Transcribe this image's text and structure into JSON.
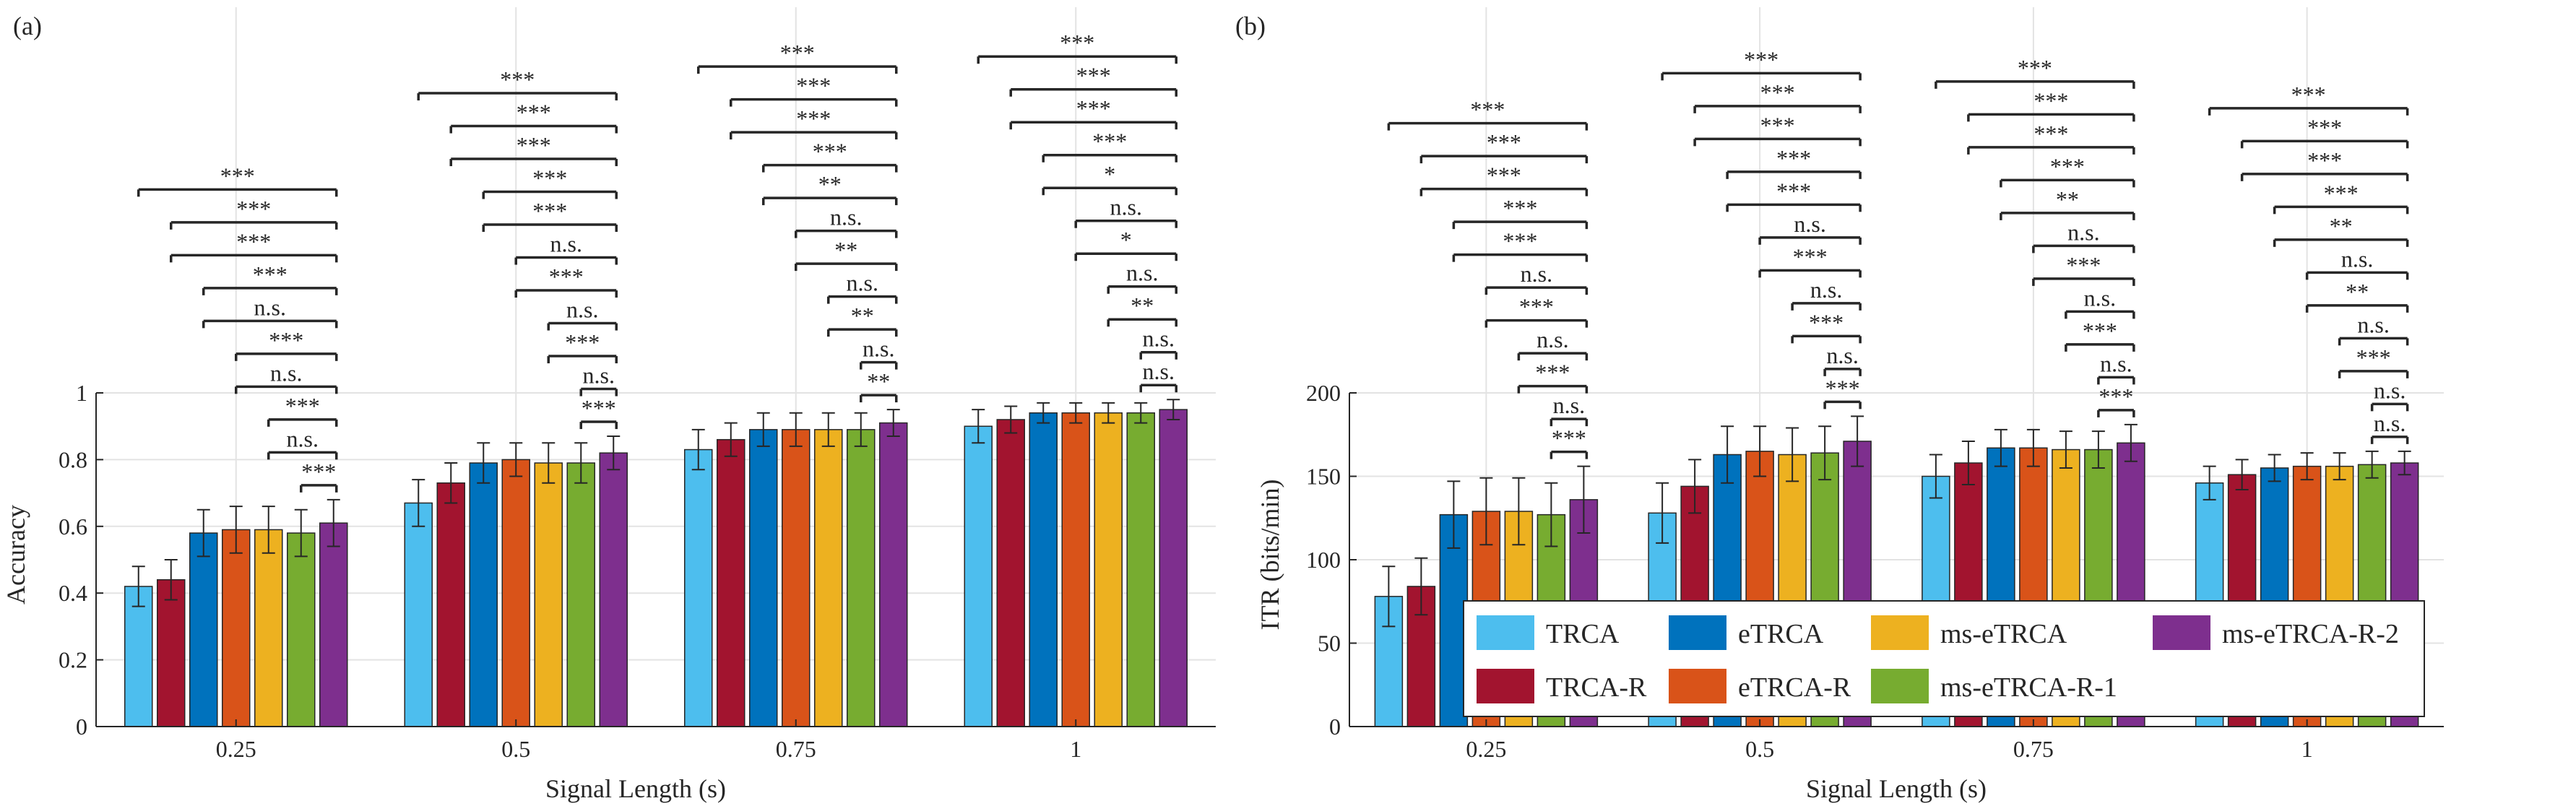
{
  "colors": {
    "TRCA": "#4DBEEE",
    "TRCA-R": "#A2142F",
    "eTRCA": "#0072BD",
    "eTRCA-R": "#D95319",
    "ms-eTRCA": "#EDB120",
    "ms-eTRCA-R-1": "#77AC30",
    "ms-eTRCA-R-2": "#7E2F8E"
  },
  "legend": {
    "placement": "bottom-right of panel (b)",
    "entries": [
      "TRCA",
      "TRCA-R",
      "eTRCA",
      "eTRCA-R",
      "ms-eTRCA",
      "ms-eTRCA-R-1",
      "ms-eTRCA-R-2"
    ]
  },
  "chart_data": [
    {
      "type": "bar",
      "panel": "(a)",
      "xlabel": "Signal Length (s)",
      "ylabel": "Accuracy",
      "ylim": [
        0,
        1
      ],
      "yticks": [
        "0",
        "0.2",
        "0.4",
        "0.6",
        "0.8",
        "1"
      ],
      "ytick_values": [
        0,
        0.2,
        0.4,
        0.6,
        0.8,
        1
      ],
      "categories": [
        "0.25",
        "0.5",
        "0.75",
        "1"
      ],
      "grid": true,
      "series": [
        {
          "name": "TRCA",
          "values": [
            0.42,
            0.67,
            0.83,
            0.9
          ],
          "errors": [
            0.06,
            0.07,
            0.06,
            0.05
          ]
        },
        {
          "name": "TRCA-R",
          "values": [
            0.44,
            0.73,
            0.86,
            0.92
          ],
          "errors": [
            0.06,
            0.06,
            0.05,
            0.04
          ]
        },
        {
          "name": "eTRCA",
          "values": [
            0.58,
            0.79,
            0.89,
            0.94
          ],
          "errors": [
            0.07,
            0.06,
            0.05,
            0.03
          ]
        },
        {
          "name": "eTRCA-R",
          "values": [
            0.59,
            0.8,
            0.89,
            0.94
          ],
          "errors": [
            0.07,
            0.05,
            0.05,
            0.03
          ]
        },
        {
          "name": "ms-eTRCA",
          "values": [
            0.59,
            0.79,
            0.89,
            0.94
          ],
          "errors": [
            0.07,
            0.06,
            0.05,
            0.03
          ]
        },
        {
          "name": "ms-eTRCA-R-1",
          "values": [
            0.58,
            0.79,
            0.89,
            0.94
          ],
          "errors": [
            0.07,
            0.06,
            0.05,
            0.03
          ]
        },
        {
          "name": "ms-eTRCA-R-2",
          "values": [
            0.61,
            0.82,
            0.91,
            0.95
          ],
          "errors": [
            0.07,
            0.05,
            0.04,
            0.03
          ]
        }
      ],
      "significance": [
        [
          "***",
          "***",
          "***",
          "***",
          "n.s.",
          "***",
          "n.s.",
          "***",
          "n.s.",
          "***"
        ],
        [
          "***",
          "***",
          "***",
          "***",
          "***",
          "n.s.",
          "***",
          "n.s.",
          "***",
          "n.s.",
          "***"
        ],
        [
          "***",
          "***",
          "***",
          "***",
          "**",
          "n.s.",
          "**",
          "n.s.",
          "**",
          "n.s.",
          "**"
        ],
        [
          "***",
          "***",
          "***",
          "***",
          "*",
          "n.s.",
          "*",
          "n.s.",
          "**",
          "n.s.",
          "n.s."
        ]
      ]
    },
    {
      "type": "bar",
      "panel": "(b)",
      "xlabel": "Signal Length (s)",
      "ylabel": "ITR (bits/min)",
      "ylim": [
        0,
        200
      ],
      "yticks": [
        "0",
        "50",
        "100",
        "150",
        "200"
      ],
      "ytick_values": [
        0,
        50,
        100,
        150,
        200
      ],
      "categories": [
        "0.25",
        "0.5",
        "0.75",
        "1"
      ],
      "grid": true,
      "series": [
        {
          "name": "TRCA",
          "values": [
            78,
            128,
            150,
            146
          ],
          "errors": [
            18,
            18,
            13,
            10
          ]
        },
        {
          "name": "TRCA-R",
          "values": [
            84,
            144,
            158,
            151
          ],
          "errors": [
            17,
            16,
            13,
            9
          ]
        },
        {
          "name": "eTRCA",
          "values": [
            127,
            163,
            167,
            155
          ],
          "errors": [
            20,
            17,
            11,
            8
          ]
        },
        {
          "name": "eTRCA-R",
          "values": [
            129,
            165,
            167,
            156
          ],
          "errors": [
            20,
            15,
            11,
            8
          ]
        },
        {
          "name": "ms-eTRCA",
          "values": [
            129,
            163,
            166,
            156
          ],
          "errors": [
            20,
            16,
            11,
            8
          ]
        },
        {
          "name": "ms-eTRCA-R-1",
          "values": [
            127,
            164,
            166,
            157
          ],
          "errors": [
            19,
            16,
            11,
            8
          ]
        },
        {
          "name": "ms-eTRCA-R-2",
          "values": [
            136,
            171,
            170,
            158
          ],
          "errors": [
            20,
            15,
            11,
            7
          ]
        }
      ],
      "significance": [
        [
          "***",
          "***",
          "***",
          "***",
          "***",
          "n.s.",
          "***",
          "n.s.",
          "***",
          "n.s.",
          "***"
        ],
        [
          "***",
          "***",
          "***",
          "***",
          "***",
          "n.s.",
          "***",
          "n.s.",
          "***",
          "n.s.",
          "***"
        ],
        [
          "***",
          "***",
          "***",
          "***",
          "**",
          "n.s.",
          "***",
          "n.s.",
          "***",
          "n.s.",
          "***"
        ],
        [
          "***",
          "***",
          "***",
          "***",
          "**",
          "n.s.",
          "**",
          "n.s.",
          "***",
          "n.s.",
          "n.s."
        ]
      ]
    }
  ]
}
